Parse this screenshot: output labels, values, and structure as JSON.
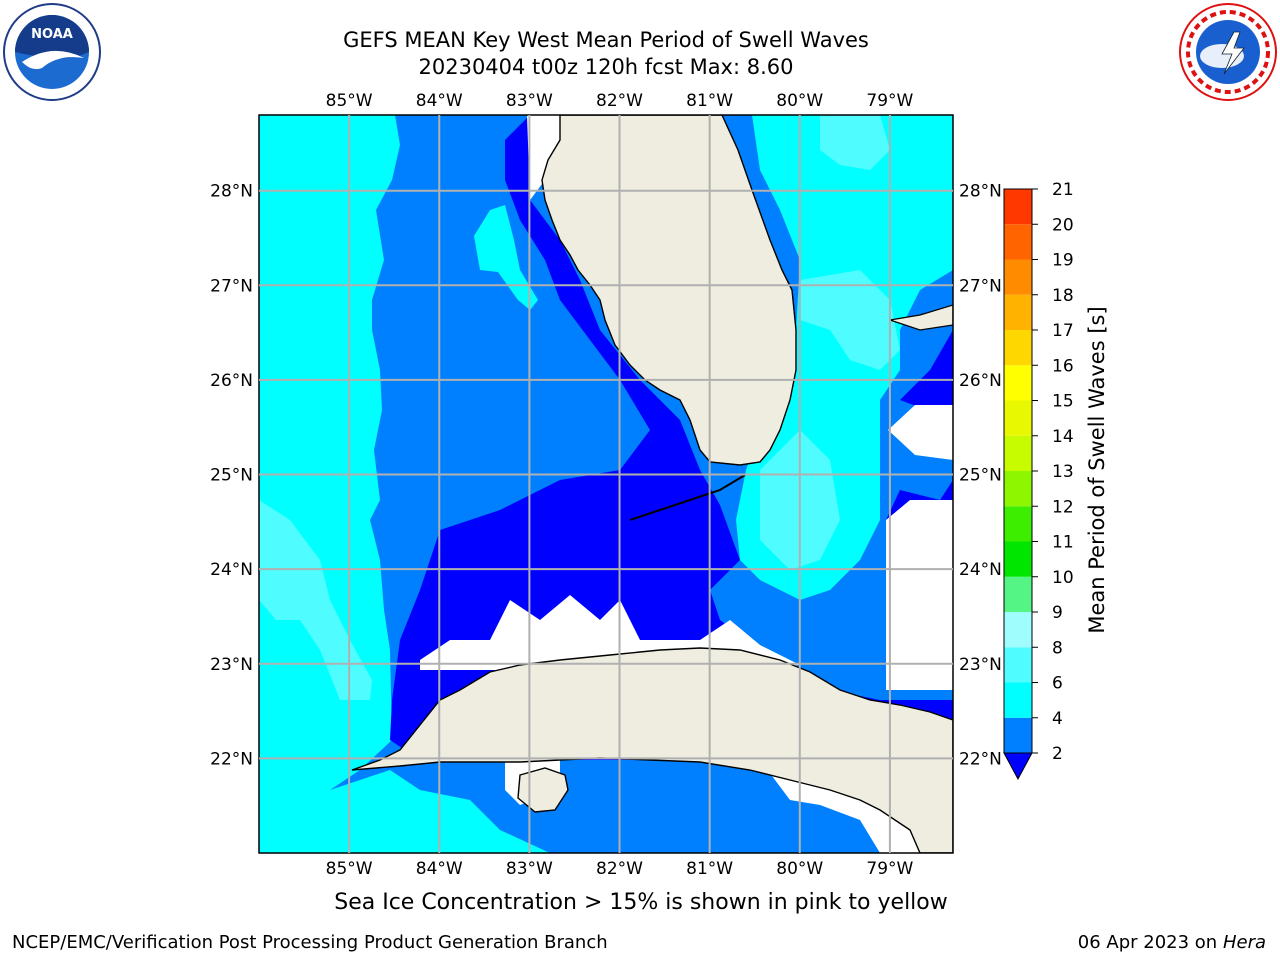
{
  "title_line1": "GEFS MEAN Key West Mean Period of Swell Waves",
  "title_line2": "20230404 t00z 120h fcst   Max: 8.60",
  "footnote": "Sea Ice Concentration > 15% is shown in pink to yellow",
  "credit": "NCEP/EMC/Verification Post Processing Product Generation Branch",
  "date_prefix": "06 Apr 2023 on ",
  "date_machine": "Hera",
  "logos": {
    "left": "noaa-logo",
    "right": "nws-logo"
  },
  "map": {
    "lon_labels": [
      "85°W",
      "84°W",
      "83°W",
      "82°W",
      "81°W",
      "80°W",
      "79°W"
    ],
    "lat_labels": [
      "28°N",
      "27°N",
      "26°N",
      "25°N",
      "24°N",
      "23°N",
      "22°N"
    ],
    "lon_range": [
      -86.0,
      -78.3
    ],
    "lat_range": [
      21.0,
      28.8
    ],
    "land_color": "#eeede0",
    "missing_color": "#ffffff",
    "grid_color": "#b0b0b0"
  },
  "colorbar": {
    "label": "Mean Period of Swell Waves [s]",
    "tick_labels": [
      "2",
      "4",
      "6",
      "8",
      "9",
      "10",
      "11",
      "12",
      "13",
      "14",
      "15",
      "16",
      "17",
      "18",
      "19",
      "20",
      "21"
    ],
    "colors": [
      "#0080ff",
      "#00ffff",
      "#4ffcff",
      "#9ffdfd",
      "#54f584",
      "#00e600",
      "#3dee00",
      "#8ef700",
      "#c6fb00",
      "#e8f800",
      "#ffff00",
      "#ffd700",
      "#ffb300",
      "#ff8c00",
      "#ff6400",
      "#ff3800",
      "#ff0000"
    ],
    "under_color": "#0000ff"
  }
}
